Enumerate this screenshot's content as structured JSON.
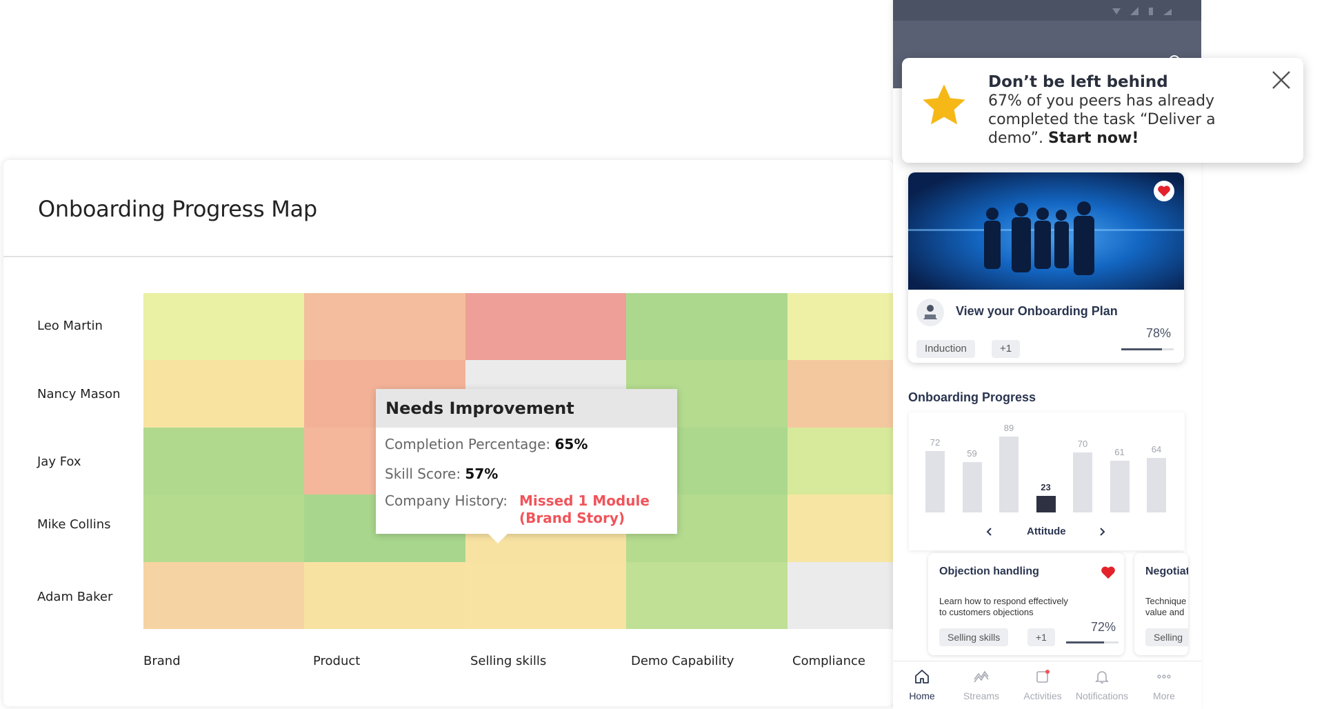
{
  "heatmap": {
    "title": "Onboarding Progress Map",
    "rows": [
      "Leo Martin",
      "Nancy Mason",
      "Jay Fox",
      "Mike Collins",
      "Adam Baker"
    ],
    "columns": [
      "Brand",
      "Product",
      "Selling skills",
      "Demo Capability",
      "Compliance"
    ],
    "cell_colors": [
      [
        "#eaf0a4",
        "#f4bd9d",
        "#ee9f97",
        "#acd88d",
        "#eef0a6"
      ],
      [
        "#f8e3a0",
        "#f3b297",
        "#ebebeb",
        "#b4db8e",
        "#f4c89f"
      ],
      [
        "#b0d98e",
        "#f4b79c",
        "#ebebeb",
        "#acd88d",
        "#d7e99a"
      ],
      [
        "#b4db8e",
        "#a8d68d",
        "#f8e2a2",
        "#b4db8e",
        "#f7e6a3"
      ],
      [
        "#f6d3a2",
        "#f8e2a2",
        "#f8e3a2",
        "#bfe095",
        "#ebebeb"
      ]
    ]
  },
  "tooltip": {
    "title": "Needs Improvement",
    "completion_label": "Completion Percentage:",
    "completion_value": "65%",
    "skill_label": "Skill Score:",
    "skill_value": "57%",
    "history_label": "Company History:",
    "history_value_1": "Missed 1 Module",
    "history_value_2": "(Brand Story)"
  },
  "notification": {
    "title": "Don’t be left behind",
    "body_line1": "67% of you peers has already",
    "body_line2": "completed the task “Deliver a",
    "body_line3": "demo”. ",
    "cta": "Start now!",
    "icon": "star-icon"
  },
  "plan_card": {
    "title": "View your Onboarding Plan",
    "percent": "78%",
    "progress": 0.78,
    "tags": [
      "Induction",
      "+1"
    ]
  },
  "onboarding_progress": {
    "title": "Onboarding Progress",
    "values": [
      "72",
      "59",
      "89",
      "23",
      "70",
      "61",
      "64"
    ],
    "numeric": [
      72,
      59,
      89,
      23,
      70,
      61,
      64
    ],
    "active_index": 3,
    "category": "Attitude"
  },
  "courses": [
    {
      "title": "Objection handling",
      "desc_line1": "Learn how to respond effectively",
      "desc_line2": "to customers objections",
      "tags": [
        "Selling skills",
        "+1"
      ],
      "percent": "72%",
      "progress": 0.72
    },
    {
      "title": "Negotiat",
      "desc_line1": "Technique",
      "desc_line2": "value and",
      "tags": [
        "Selling"
      ]
    }
  ],
  "bottom_nav": [
    "Home",
    "Streams",
    "Activities",
    "Notifications",
    "More"
  ],
  "colors": {
    "accent_dark": "#2a3550",
    "header": "#596073",
    "star": "#f6b817",
    "alert_red": "#f0545a"
  }
}
